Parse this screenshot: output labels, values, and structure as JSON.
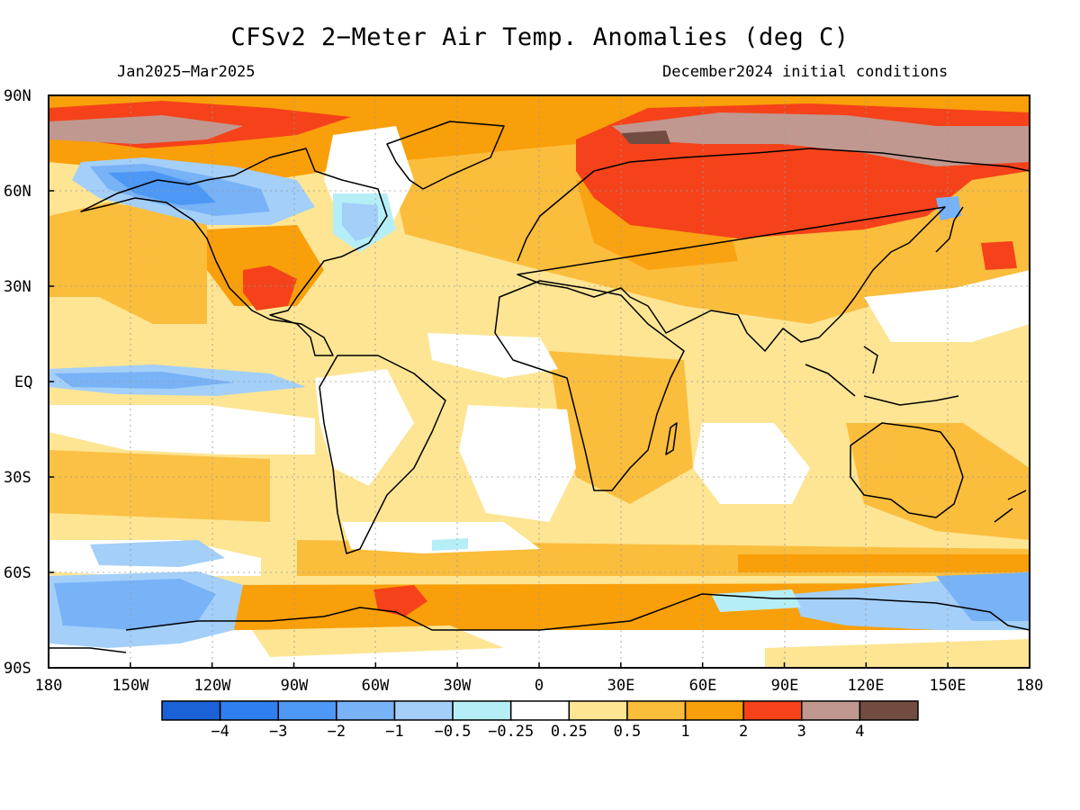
{
  "title": "CFSv2 2−Meter Air Temp. Anomalies (deg C)",
  "subtitle_left": "Jan2025−Mar2025",
  "subtitle_right": "December2024 initial conditions",
  "lat_labels": [
    "90N",
    "60N",
    "30N",
    "EQ",
    "30S",
    "60S",
    "90S"
  ],
  "lon_labels": [
    "180",
    "150W",
    "120W",
    "90W",
    "60W",
    "30W",
    "0",
    "30E",
    "60E",
    "90E",
    "120E",
    "150E",
    "180"
  ],
  "colorbar": {
    "colors": [
      "#1a62d6",
      "#2f7ff0",
      "#4d98f5",
      "#78b2f7",
      "#a3cff9",
      "#b6eef7",
      "#ffffff",
      "#fde594",
      "#fbbd3c",
      "#f99f0a",
      "#f5421a",
      "#c09890",
      "#734c41"
    ],
    "labels": [
      "−4",
      "−3",
      "−2",
      "−1",
      "−0.5",
      "−0.25",
      "0.25",
      "0.5",
      "1",
      "2",
      "3",
      "4"
    ]
  }
}
